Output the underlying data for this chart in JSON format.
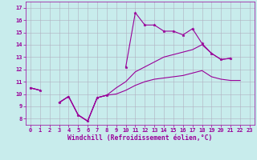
{
  "bg_color": "#c8ecec",
  "line_color": "#990099",
  "grid_color": "#b0b0c0",
  "xlabel": "Windchill (Refroidissement éolien,°C)",
  "x_data": [
    0,
    1,
    2,
    3,
    4,
    5,
    6,
    7,
    8,
    9,
    10,
    11,
    12,
    13,
    14,
    15,
    16,
    17,
    18,
    19,
    20,
    21,
    22,
    23
  ],
  "line_spiky": [
    10.5,
    10.3,
    null,
    9.3,
    9.8,
    8.3,
    7.8,
    9.7,
    9.9,
    null,
    12.2,
    16.6,
    15.6,
    15.6,
    15.1,
    15.1,
    14.8,
    15.3,
    14.1,
    13.3,
    12.8,
    12.9,
    null,
    null
  ],
  "line_mid": [
    10.5,
    10.3,
    null,
    9.3,
    9.8,
    8.3,
    7.8,
    9.7,
    9.9,
    10.5,
    11.0,
    11.8,
    12.2,
    12.6,
    13.0,
    13.2,
    13.4,
    13.6,
    14.0,
    13.3,
    12.8,
    12.9,
    null,
    null
  ],
  "line_low": [
    10.5,
    10.3,
    null,
    9.3,
    9.8,
    8.3,
    7.8,
    9.7,
    9.9,
    10.0,
    10.3,
    10.7,
    11.0,
    11.2,
    11.3,
    11.4,
    11.5,
    11.7,
    11.9,
    11.4,
    11.2,
    11.1,
    11.1,
    null
  ],
  "xlim": [
    -0.5,
    23.5
  ],
  "ylim": [
    7.5,
    17.5
  ],
  "yticks": [
    8,
    9,
    10,
    11,
    12,
    13,
    14,
    15,
    16,
    17
  ],
  "xticks": [
    0,
    1,
    2,
    3,
    4,
    5,
    6,
    7,
    8,
    9,
    10,
    11,
    12,
    13,
    14,
    15,
    16,
    17,
    18,
    19,
    20,
    21,
    22,
    23
  ],
  "tick_fontsize": 5.0,
  "xlabel_fontsize": 5.8,
  "lw": 0.8,
  "marker_size": 2.5
}
